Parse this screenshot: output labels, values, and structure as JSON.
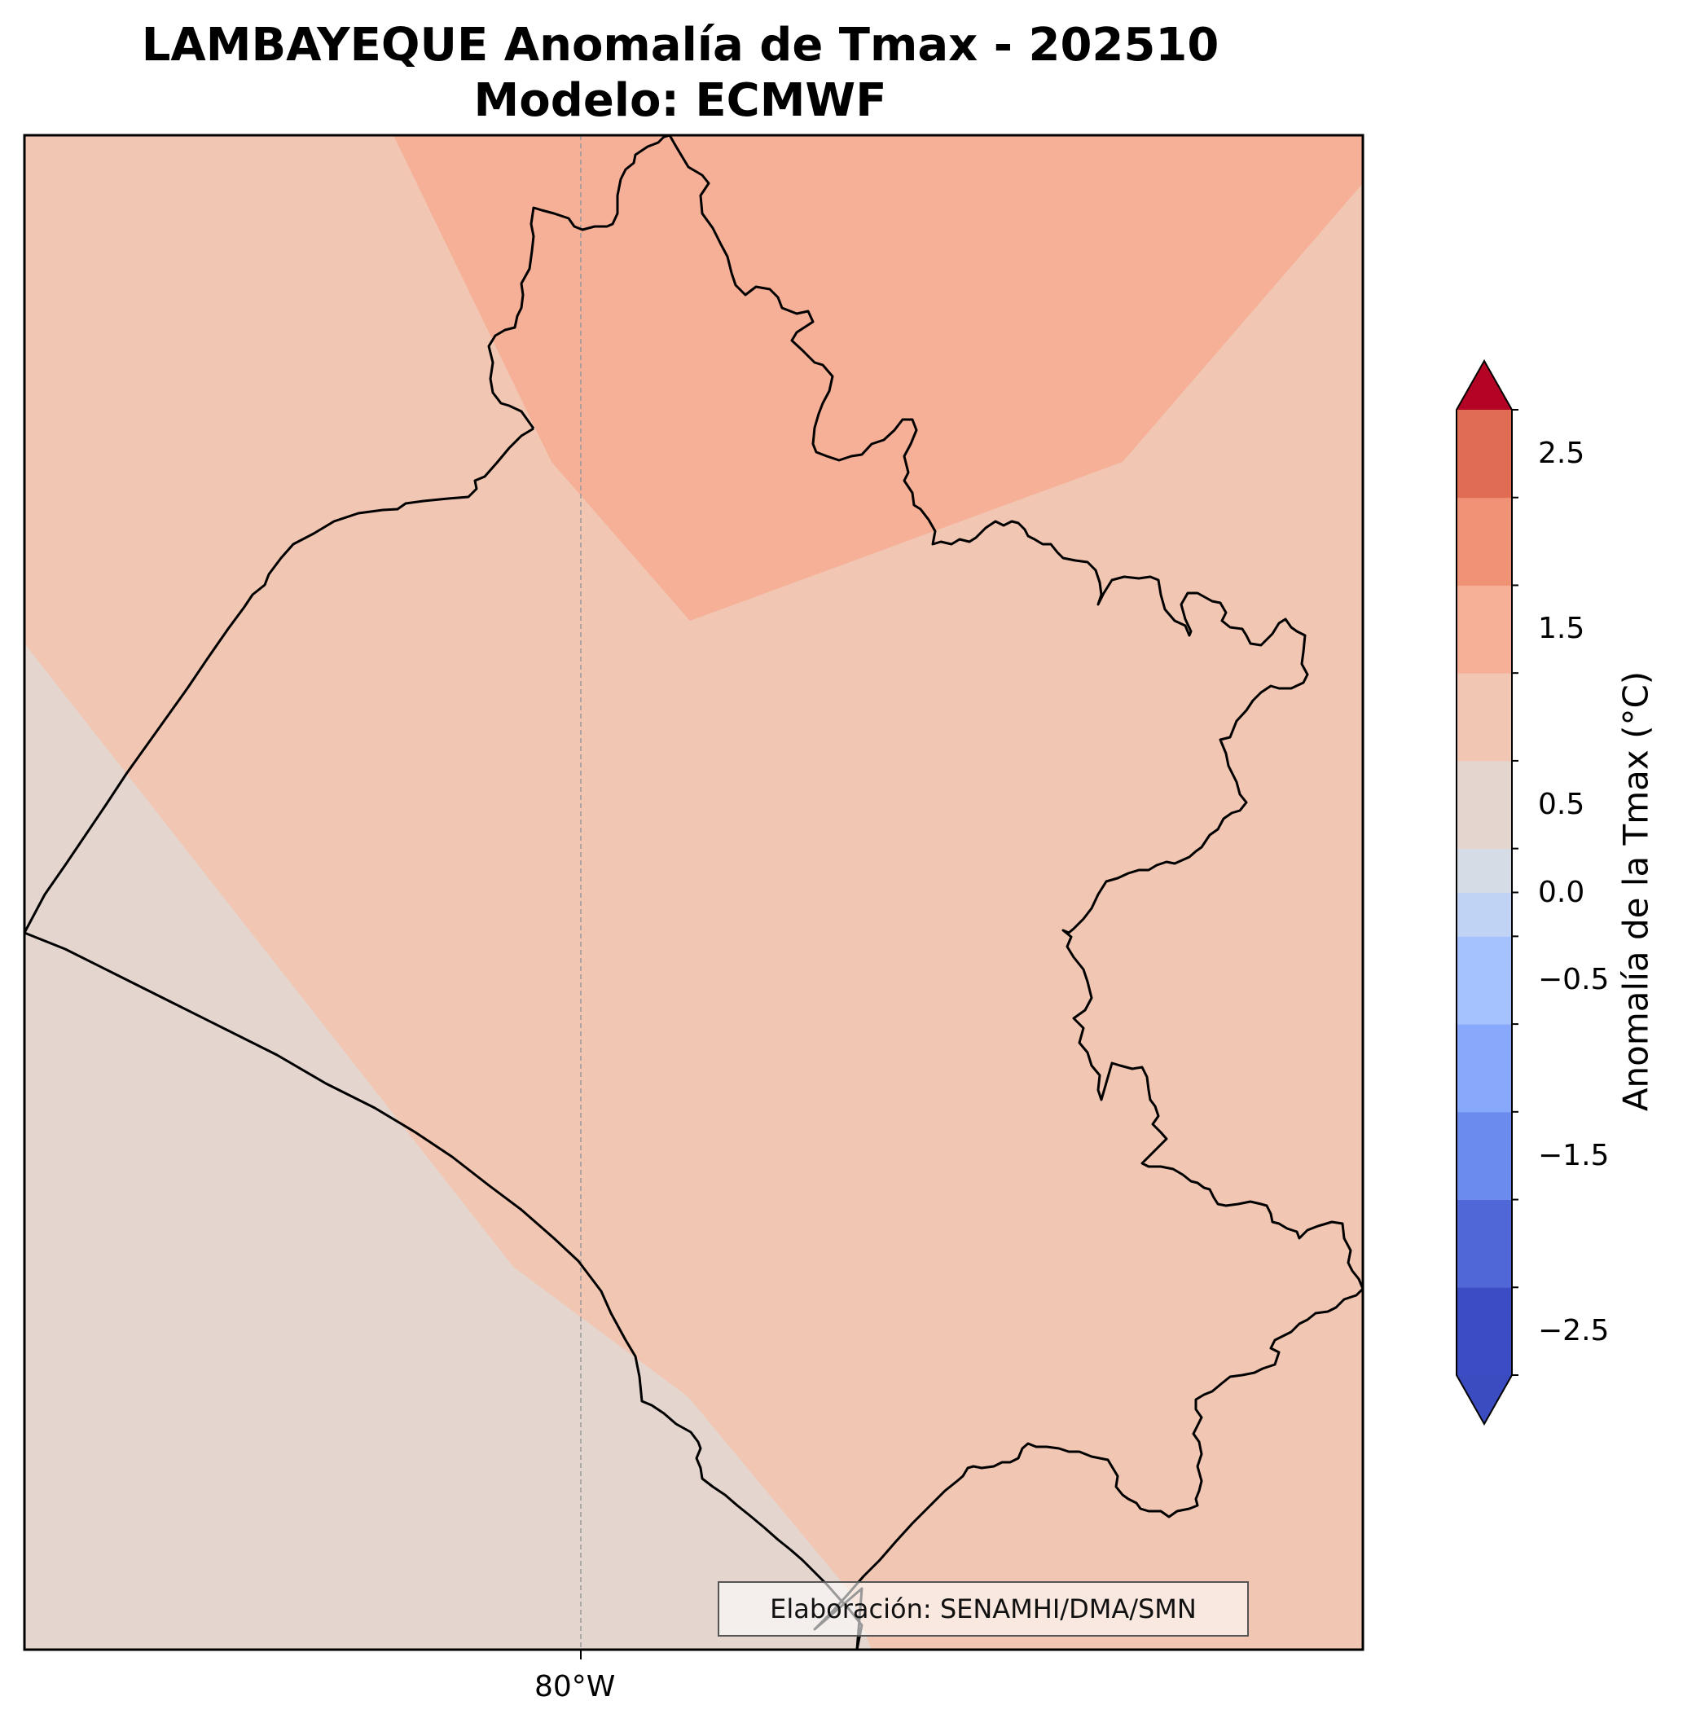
{
  "title": {
    "line1": "LAMBAYEQUE Anomalía de Tmax - 202510",
    "line2": "Modelo: ECMWF"
  },
  "map": {
    "lon_tick_label": "80°W",
    "credit": "Elaboración: SENAMHI/DMA/SMN",
    "zone_colors": {
      "band_0_to_0_25": "#e4d6cf",
      "band_0_25_to_0_75": "#f1c6b2",
      "band_0_75_to_1_25": "#f5b097"
    }
  },
  "colorbar": {
    "title": "Anomalía de la Tmax (°C)",
    "tick_labels": [
      "2.5",
      "1.5",
      "0.5",
      "0.0",
      "−0.5",
      "−1.5",
      "−2.5"
    ],
    "levels": [
      -2.75,
      -2.25,
      -1.75,
      -1.25,
      -0.75,
      -0.25,
      0,
      0.25,
      0.75,
      1.25,
      1.75,
      2.25,
      2.75
    ],
    "colors": [
      "#3c4cc4",
      "#5067d8",
      "#6b8bef",
      "#88a8fb",
      "#a6c2fe",
      "#c1d3f5",
      "#d5dce6",
      "#e4d6cf",
      "#f1c6b2",
      "#f5b097",
      "#ef9275",
      "#e06d53",
      "#cd4237",
      "#b30326"
    ],
    "extend_colors": {
      "over": "#b40426",
      "under": "#3b4cc0"
    }
  }
}
